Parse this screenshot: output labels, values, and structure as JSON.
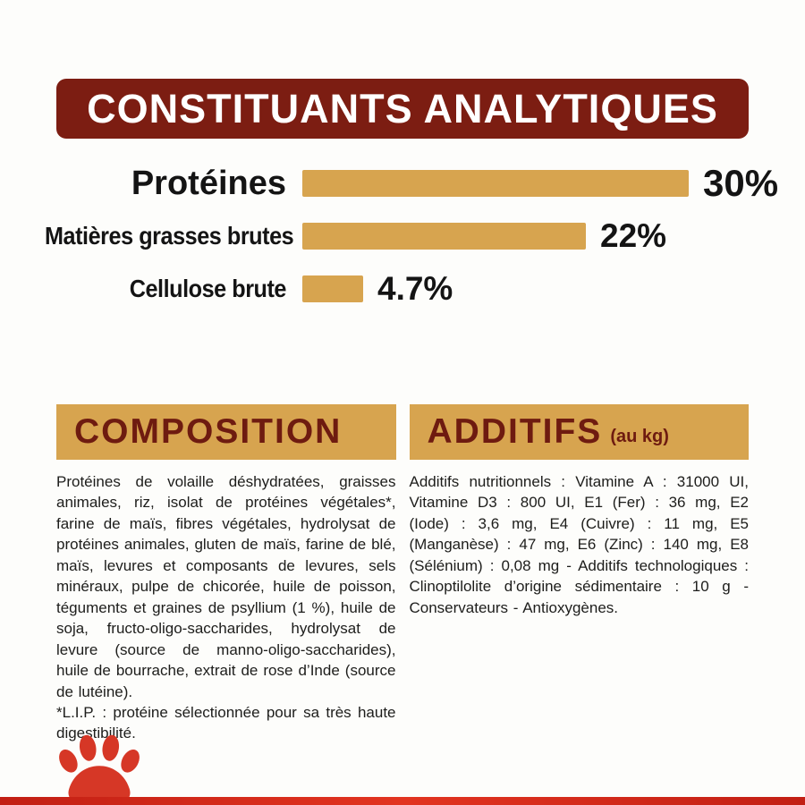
{
  "banner": {
    "title": "CONSTITUANTS ANALYTIQUES"
  },
  "chart_data": {
    "type": "bar",
    "orientation": "horizontal",
    "title": "CONSTITUANTS ANALYTIQUES",
    "categories": [
      "Protéines",
      "Matières grasses brutes",
      "Cellulose brute"
    ],
    "values": [
      30,
      22,
      4.7
    ],
    "value_labels": [
      "30%",
      "22%",
      "4.7%"
    ],
    "xlabel": "",
    "ylabel": "",
    "xlim": [
      0,
      30
    ],
    "grid": false,
    "legend": false,
    "bar_color": "#d7a44f"
  },
  "composition": {
    "title": "COMPOSITION",
    "body": "Protéines de volaille déshydratées, graisses animales, riz, isolat de protéines végétales*, farine de maïs, fibres végétales, hydrolysat de protéines animales, gluten de maïs, farine de blé, maïs, levures et composants de levures, sels minéraux, pulpe de chicorée, huile de poisson, téguments et graines de psyllium (1 %), huile de soja, fructo-oligo-saccharides, hydrolysat de levure (source de manno-oligo-saccharides), huile de bourrache, extrait de rose d’Inde (source de lutéine).",
    "footnote": "*L.I.P. : protéine sélectionnée pour sa très haute digestibilité."
  },
  "additifs": {
    "title": "ADDITIFS",
    "subtitle": "(au kg)",
    "body": "Additifs nutritionnels : Vitamine A : 31000 UI, Vitamine D3 : 800 UI, E1 (Fer) : 36 mg, E2 (Iode) : 3,6 mg, E4 (Cuivre) : 11 mg, E5 (Manganèse) : 47 mg, E6 (Zinc) : 140 mg, E8 (Sélénium) : 0,08 mg - Additifs technologiques : Clinoptilolite d’origine sédimentaire : 10 g - Conservateurs - Antioxygènes."
  },
  "footer": {
    "logo": "paw-crown-logo"
  },
  "colors": {
    "banner_red": "#7c1d12",
    "tan": "#d7a44f",
    "heading_maroon": "#6e1b10",
    "body_text": "#1d1d1b",
    "paw_red": "#d63726",
    "bottom_strip_red": "#d8281a"
  }
}
